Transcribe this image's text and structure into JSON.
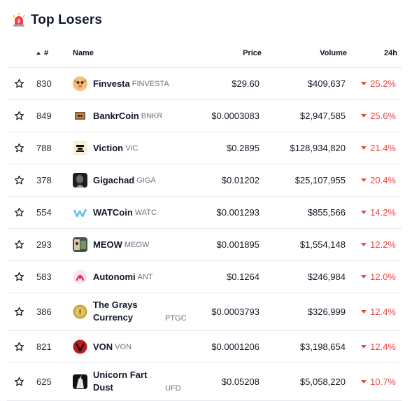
{
  "header": {
    "title": "Top Losers",
    "icon": "siren-icon"
  },
  "columns": {
    "rank": "#",
    "name": "Name",
    "price": "Price",
    "volume": "Volume",
    "change": "24h"
  },
  "colors": {
    "negative": "#ef4444",
    "muted": "#6b7280",
    "divider": "#e5e7eb"
  },
  "rows": [
    {
      "rank": "830",
      "name": "Finvesta",
      "symbol": "FINVESTA",
      "price": "$29.60",
      "volume": "$409,637",
      "change": "25.2%",
      "icon": "finvesta-logo-icon"
    },
    {
      "rank": "849",
      "name": "BankrCoin",
      "symbol": "BNKR",
      "price": "$0.0003083",
      "volume": "$2,947,585",
      "change": "25.6%",
      "icon": "bankrcoin-logo-icon"
    },
    {
      "rank": "788",
      "name": "Viction",
      "symbol": "VIC",
      "price": "$0.2895",
      "volume": "$128,934,820",
      "change": "21.4%",
      "icon": "viction-logo-icon"
    },
    {
      "rank": "378",
      "name": "Gigachad",
      "symbol": "GIGA",
      "price": "$0.01202",
      "volume": "$25,107,955",
      "change": "20.4%",
      "icon": "gigachad-logo-icon"
    },
    {
      "rank": "554",
      "name": "WATCoin",
      "symbol": "WATC",
      "price": "$0.001293",
      "volume": "$855,566",
      "change": "14.2%",
      "icon": "watcoin-logo-icon"
    },
    {
      "rank": "293",
      "name": "MEOW",
      "symbol": "MEOW",
      "price": "$0.001895",
      "volume": "$1,554,148",
      "change": "12.2%",
      "icon": "meow-logo-icon"
    },
    {
      "rank": "583",
      "name": "Autonomi",
      "symbol": "ANT",
      "price": "$0.1264",
      "volume": "$246,984",
      "change": "12.0%",
      "icon": "autonomi-logo-icon"
    },
    {
      "rank": "386",
      "name": "The Grays Currency",
      "symbol": "PTGC",
      "price": "$0.0003793",
      "volume": "$326,999",
      "change": "12.4%",
      "icon": "grays-currency-logo-icon"
    },
    {
      "rank": "821",
      "name": "VON",
      "symbol": "VON",
      "price": "$0.0001206",
      "volume": "$3,198,654",
      "change": "12.4%",
      "icon": "von-logo-icon"
    },
    {
      "rank": "625",
      "name": "Unicorn Fart Dust",
      "symbol": "UFD",
      "price": "$0.05208",
      "volume": "$5,058,220",
      "change": "10.7%",
      "icon": "unicorn-fart-dust-logo-icon"
    }
  ]
}
